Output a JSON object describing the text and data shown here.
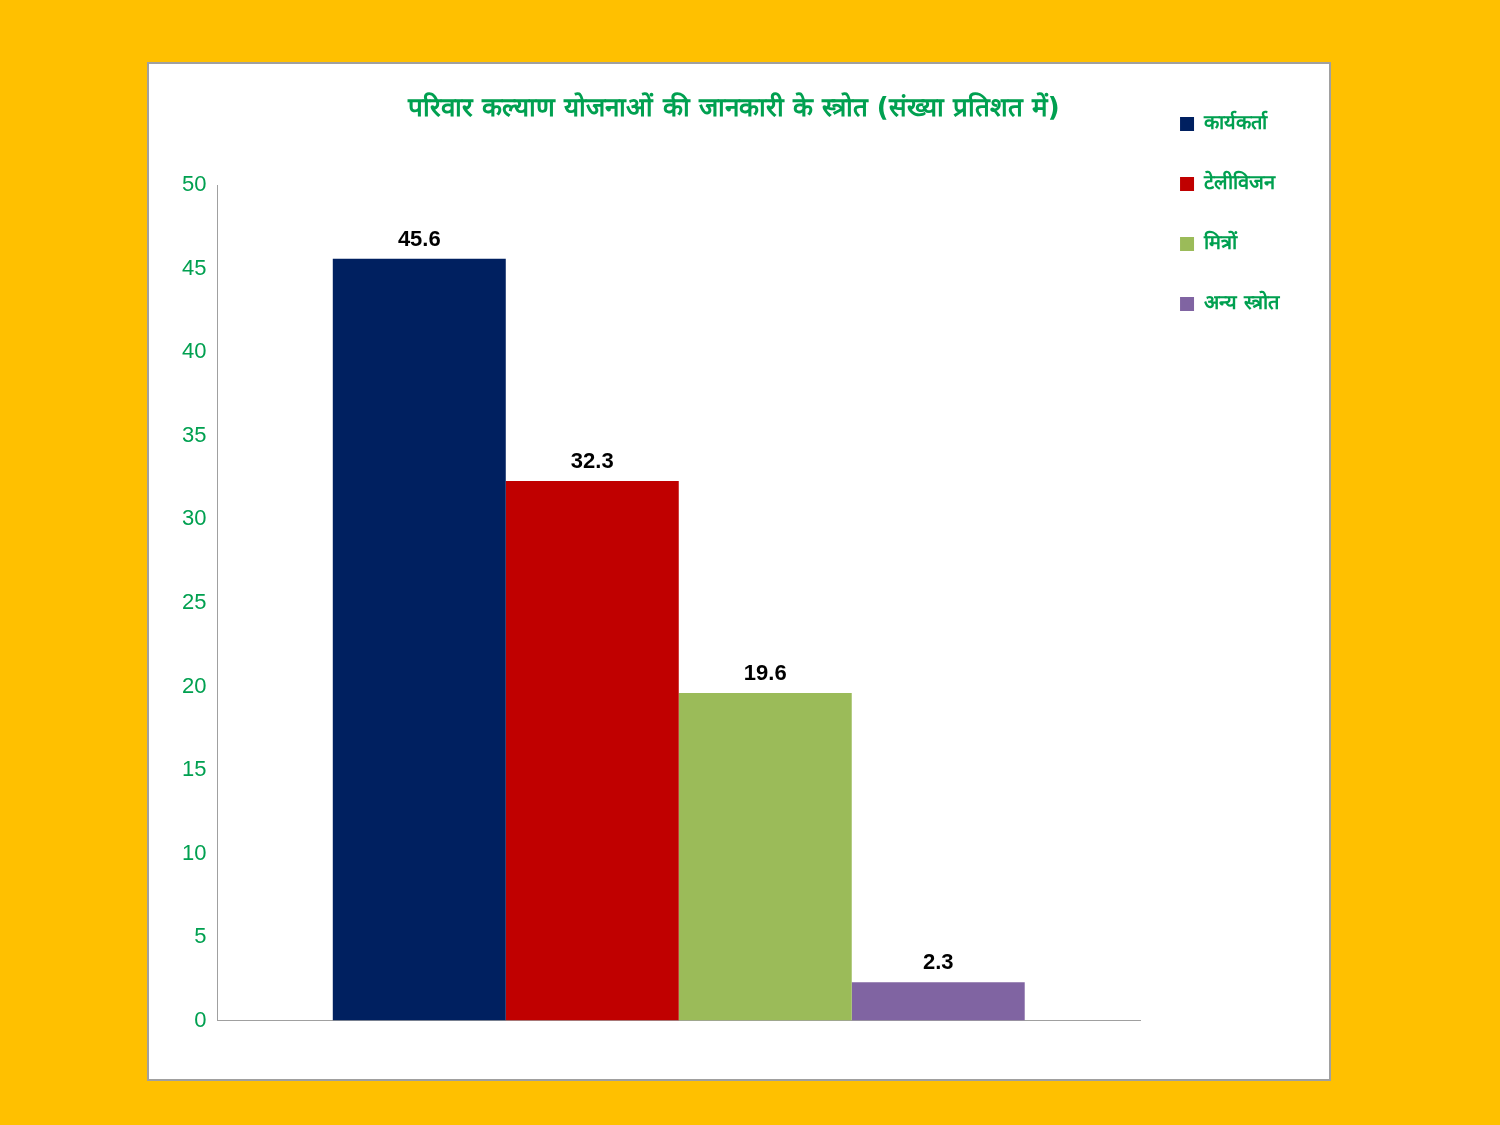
{
  "chart_data": {
    "type": "bar",
    "title": "परिवार कल्याण योजनाओं की जानकारी के स्त्रोत (संख्या प्रतिशत में)",
    "categories": [
      null
    ],
    "series": [
      {
        "name": "कार्यकर्ता",
        "color": "#002060",
        "values": [
          45.6
        ]
      },
      {
        "name": "टेलीविजन",
        "color": "#c00000",
        "values": [
          32.3
        ]
      },
      {
        "name": "मित्रों",
        "color": "#9bbb59",
        "values": [
          19.6
        ]
      },
      {
        "name": "अन्य स्त्रोत",
        "color": "#8064a2",
        "values": [
          2.3
        ]
      }
    ],
    "ylim": [
      0,
      50
    ],
    "yticks": [
      0,
      5,
      10,
      15,
      20,
      25,
      30,
      35,
      40,
      45,
      50
    ],
    "grid": false,
    "legend": "top right",
    "data_labels": true
  }
}
